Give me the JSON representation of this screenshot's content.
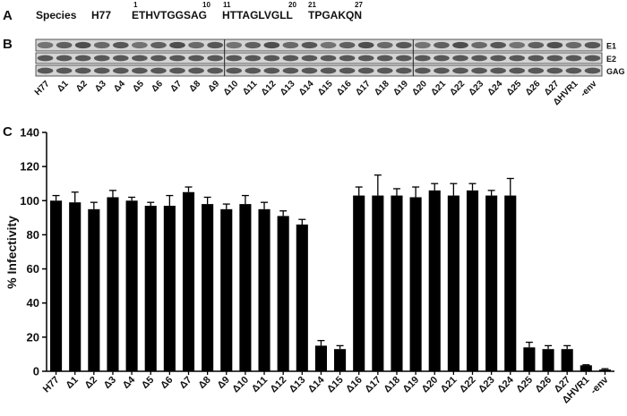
{
  "panel_a": {
    "label": "A",
    "species_label": "Species",
    "strain": "H77",
    "segments": [
      {
        "sequence": "ETHVTGGSAG",
        "start": "1",
        "end": "10"
      },
      {
        "sequence": "HTTAGLVGLL",
        "start": "11",
        "end": "20"
      },
      {
        "sequence": "TPGAKQN",
        "start": "21",
        "end": "27"
      }
    ]
  },
  "panel_b": {
    "label": "B",
    "rows": [
      "E1",
      "E2",
      "GAG"
    ],
    "lanes": [
      "H77",
      "Δ1",
      "Δ2",
      "Δ3",
      "Δ4",
      "Δ5",
      "Δ6",
      "Δ7",
      "Δ8",
      "Δ9",
      "Δ10",
      "Δ11",
      "Δ12",
      "Δ13",
      "Δ14",
      "Δ15",
      "Δ16",
      "Δ17",
      "Δ18",
      "Δ19",
      "Δ20",
      "Δ21",
      "Δ22",
      "Δ23",
      "Δ24",
      "Δ25",
      "Δ26",
      "Δ27",
      "ΔHVR1",
      "-env"
    ]
  },
  "chart_data": {
    "type": "bar",
    "panel_label": "C",
    "y_label": "% Infectivity",
    "categories": [
      "H77",
      "Δ1",
      "Δ2",
      "Δ3",
      "Δ4",
      "Δ5",
      "Δ6",
      "Δ7",
      "Δ8",
      "Δ9",
      "Δ10",
      "Δ11",
      "Δ12",
      "Δ13",
      "Δ14",
      "Δ15",
      "Δ16",
      "Δ17",
      "Δ18",
      "Δ19",
      "Δ20",
      "Δ21",
      "Δ22",
      "Δ23",
      "Δ24",
      "Δ25",
      "Δ26",
      "Δ27",
      "ΔHVR1",
      "-env"
    ],
    "values": [
      100,
      99,
      95,
      102,
      100,
      97,
      97,
      105,
      98,
      95,
      98,
      95,
      91,
      86,
      15,
      13,
      103,
      103,
      103,
      102,
      106,
      103,
      106,
      103,
      103,
      14,
      13,
      13,
      3.5,
      1
    ],
    "errors": [
      3,
      6,
      4,
      4,
      2,
      2,
      6,
      3,
      4,
      3,
      5,
      4,
      3,
      3,
      3,
      2,
      5,
      12,
      4,
      6,
      4,
      7,
      4,
      3,
      10,
      3,
      2,
      2,
      0.3,
      0.5
    ],
    "color": "#000000",
    "ylim": [
      0,
      140
    ],
    "yticks": [
      0,
      20,
      40,
      60,
      80,
      100,
      120,
      140
    ]
  }
}
